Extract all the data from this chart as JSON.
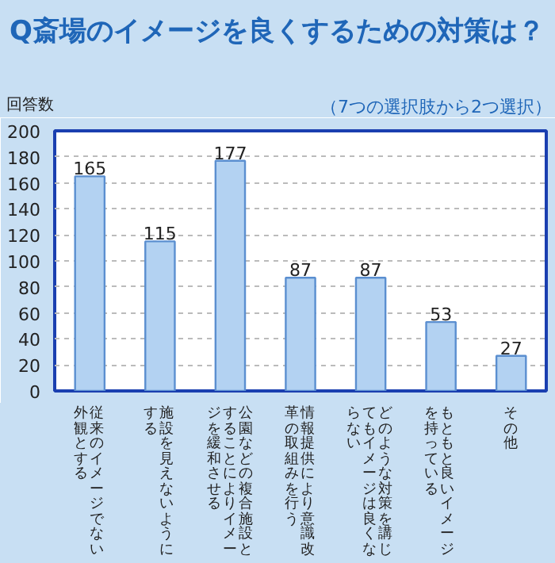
{
  "chart_data": {
    "type": "bar",
    "title": "Q斎場のイメージを良くするための対策は？",
    "subtitle": "（7つの選択肢から2つ選択）",
    "ylabel": "回答数",
    "categories": [
      "従来のイメージでない外観とする",
      "施設を見えないようにする",
      "公園などの複合施設とすることによりイメージを緩和させる",
      "情報提供により意識改革の取組みを行う",
      "どのような対策を講じてもイメージは良くならない",
      "もともと良いイメージを持っている",
      "その他"
    ],
    "values": [
      165,
      115,
      177,
      87,
      87,
      53,
      27
    ],
    "color": "#b3d2f2",
    "ylim": [
      0,
      200
    ],
    "yticks": [
      0,
      20,
      40,
      60,
      80,
      100,
      120,
      140,
      160,
      180,
      200
    ],
    "grid": "y",
    "data_labels": true
  }
}
